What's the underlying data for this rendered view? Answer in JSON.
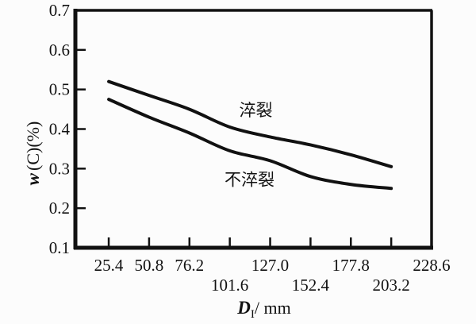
{
  "figure": {
    "background": "#fcfcfc",
    "ink_color": "#111111"
  },
  "chart_data": {
    "type": "line",
    "title": "",
    "xlabel_parts": {
      "symbol": "D",
      "subscript": "I",
      "unit": "/ mm"
    },
    "ylabel_parts": {
      "symbol": "w",
      "suffix": "(C)(%)"
    },
    "xlim": [
      4.4,
      228.6
    ],
    "ylim": [
      0.1,
      0.7
    ],
    "grid": false,
    "legend_position": "none (inline curve annotations)",
    "x_tick_labels": [
      "25.4",
      "50.8",
      "76.2",
      "101.6",
      "127.0",
      "152.4",
      "177.8",
      "203.2",
      "228.6"
    ],
    "x_tick_rows": [
      0,
      0,
      0,
      1,
      0,
      1,
      0,
      1,
      0
    ],
    "y_tick_labels": [
      "0.7",
      "0.6",
      "0.5",
      "0.4",
      "0.3",
      "0.2",
      "0.1"
    ],
    "series": [
      {
        "name": "淬裂",
        "x": [
          25.4,
          50.8,
          76.2,
          101.6,
          127.0,
          152.4,
          177.8,
          203.2
        ],
        "y": [
          0.52,
          0.485,
          0.45,
          0.405,
          0.38,
          0.36,
          0.335,
          0.305
        ]
      },
      {
        "name": "不淬裂",
        "x": [
          25.4,
          50.8,
          76.2,
          101.6,
          127.0,
          152.4,
          177.8,
          203.2
        ],
        "y": [
          0.475,
          0.43,
          0.39,
          0.345,
          0.32,
          0.28,
          0.26,
          0.25
        ]
      }
    ],
    "annotations": [
      {
        "text": "淬裂",
        "x": 118,
        "y": 0.447
      },
      {
        "text": "不淬裂",
        "x": 114,
        "y": 0.272
      }
    ]
  }
}
